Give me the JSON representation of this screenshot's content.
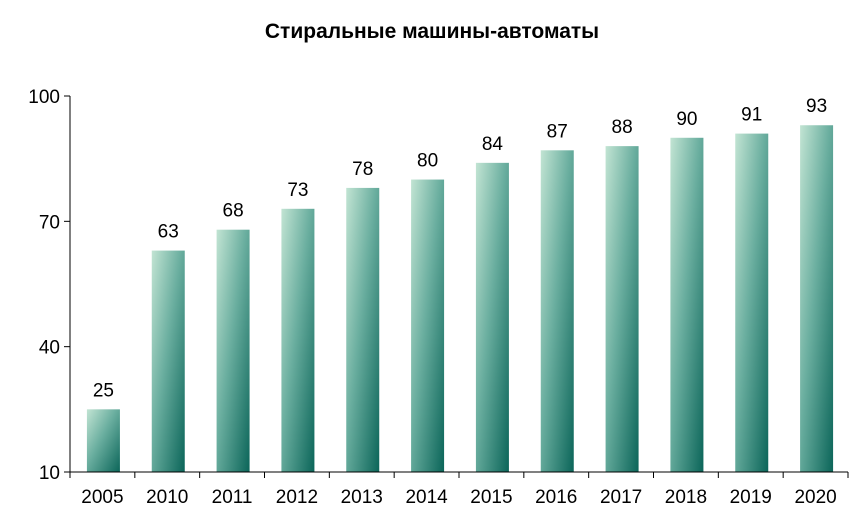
{
  "chart_data": {
    "type": "bar",
    "title": "Стиральные машины-автоматы",
    "xlabel": "",
    "ylabel": "",
    "categories": [
      "2005",
      "2010",
      "2011",
      "2012",
      "2013",
      "2014",
      "2015",
      "2016",
      "2017",
      "2018",
      "2019",
      "2020"
    ],
    "values": [
      25,
      63,
      68,
      73,
      78,
      80,
      84,
      87,
      88,
      90,
      91,
      93
    ],
    "ylim": [
      10,
      100
    ],
    "yticks": [
      10,
      40,
      70,
      100
    ],
    "ytick_labels": [
      "10",
      "40",
      "70",
      "100"
    ],
    "grid": false,
    "legend": "none",
    "data_labels": true,
    "colors": {
      "bar_top": "#b8dfcc",
      "bar_mid": "#5fa89a",
      "bar_bottom": "#0e6a5e",
      "axis": "#000000"
    }
  }
}
